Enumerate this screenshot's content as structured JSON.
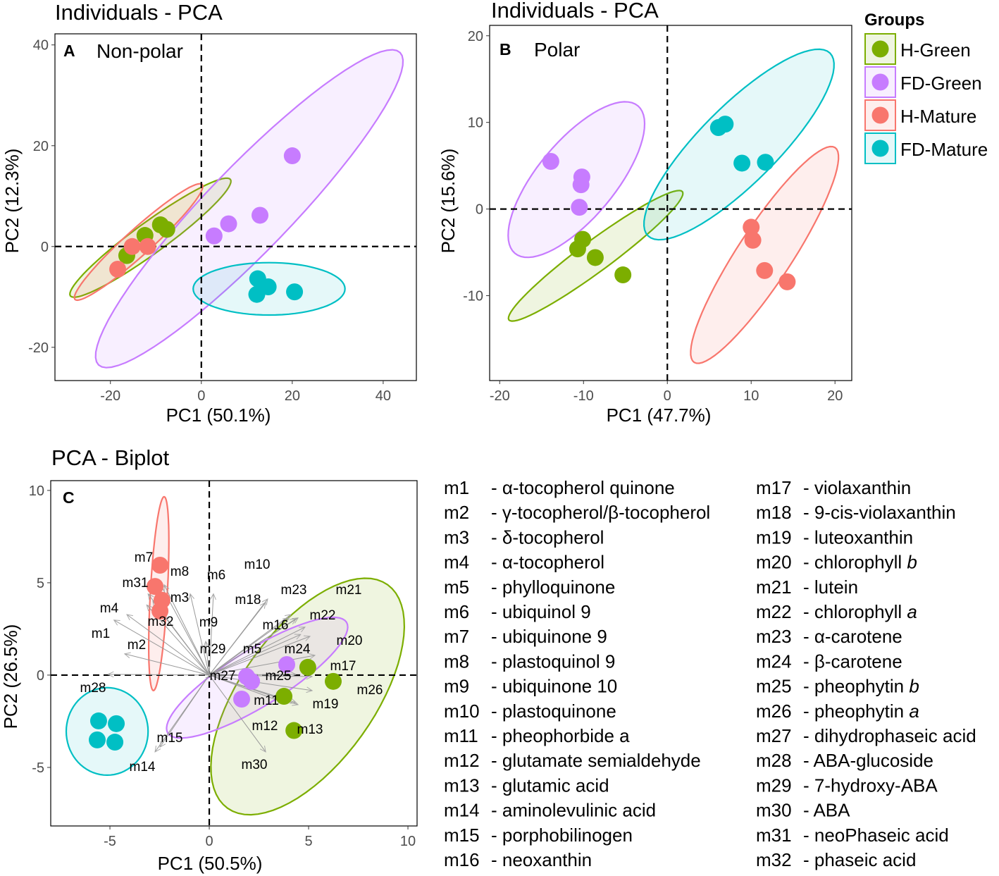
{
  "legend": {
    "title": "Groups",
    "items": [
      {
        "label": "H-Green",
        "color": "#7CAE00"
      },
      {
        "label": "FD-Green",
        "color": "#C77CFF"
      },
      {
        "label": "H-Mature",
        "color": "#F8766D"
      },
      {
        "label": "FD-Mature",
        "color": "#00BFC4"
      }
    ]
  },
  "chart_data": [
    {
      "type": "scatter",
      "title": "Individuals - PCA",
      "panel_label": "A",
      "subtitle": "Non-polar",
      "xlabel": "PC1 (50.1%)",
      "ylabel": "PC2 (12.3%)",
      "xlim": [
        -32.2,
        47.3
      ],
      "ylim": [
        -26.6,
        42.2
      ],
      "xticks": [
        -20,
        0,
        20,
        40
      ],
      "yticks": [
        -20,
        0,
        20,
        40
      ],
      "grid": false,
      "series": [
        {
          "name": "H-Green",
          "points": [
            [
              -9.0,
              4.3
            ],
            [
              -7.6,
              3.4
            ],
            [
              -12.4,
              2.2
            ],
            [
              -16.4,
              -1.8
            ]
          ]
        },
        {
          "name": "FD-Green",
          "points": [
            [
              2.8,
              2.1
            ],
            [
              6.0,
              4.5
            ],
            [
              12.9,
              6.2
            ],
            [
              20.0,
              18.0
            ]
          ]
        },
        {
          "name": "H-Mature",
          "points": [
            [
              -18.4,
              -4.5
            ],
            [
              -15.2,
              0.0
            ],
            [
              -11.8,
              0.0
            ]
          ]
        },
        {
          "name": "FD-Mature",
          "points": [
            [
              12.4,
              -6.4
            ],
            [
              14.7,
              -8.0
            ],
            [
              12.2,
              -9.5
            ],
            [
              20.5,
              -9.0
            ]
          ]
        }
      ],
      "ellipses": [
        {
          "group": "H-Green",
          "center": [
            -11.2,
            1.75
          ],
          "axis1": [
            17.6,
            11.55
          ],
          "axis2": [
            2.0,
            -2.5
          ]
        },
        {
          "group": "H-Mature",
          "center": [
            -13.8,
            0.9
          ],
          "axis1": [
            14.0,
            11.4
          ],
          "axis2": [
            1.9,
            -1.9
          ]
        },
        {
          "group": "FD-Green",
          "center": [
            10.55,
            7.5
          ],
          "axis1": [
            33.15,
            31.0
          ],
          "axis2": [
            6.7,
            -5.8
          ]
        },
        {
          "group": "FD-Mature",
          "center": [
            14.9,
            -8.4
          ],
          "axis1": [
            16.7,
            0.0
          ],
          "axis2": [
            0.0,
            5.2
          ]
        }
      ]
    },
    {
      "type": "scatter",
      "title": "Individuals - PCA",
      "panel_label": "B",
      "subtitle": "Polar",
      "xlabel": "PC1 (47.7%)",
      "ylabel": "PC2 (15.6%)",
      "xlim": [
        -21.2,
        22.0
      ],
      "ylim": [
        -19.8,
        21.2
      ],
      "xticks": [
        -20,
        -10,
        0,
        10,
        20
      ],
      "yticks": [
        -10,
        0,
        10,
        20
      ],
      "grid": false,
      "series": [
        {
          "name": "H-Green",
          "points": [
            [
              -10.1,
              -3.5
            ],
            [
              -10.7,
              -4.6
            ],
            [
              -8.6,
              -5.6
            ],
            [
              -5.3,
              -7.6
            ]
          ]
        },
        {
          "name": "FD-Green",
          "points": [
            [
              -13.9,
              5.5
            ],
            [
              -10.2,
              3.7
            ],
            [
              -10.3,
              2.8
            ],
            [
              -10.5,
              0.2
            ]
          ]
        },
        {
          "name": "H-Mature",
          "points": [
            [
              10.0,
              -2.1
            ],
            [
              10.2,
              -3.6
            ],
            [
              11.6,
              -7.1
            ],
            [
              14.3,
              -8.4
            ]
          ]
        },
        {
          "name": "FD-Mature",
          "points": [
            [
              6.1,
              9.4
            ],
            [
              6.9,
              9.8
            ],
            [
              8.9,
              5.3
            ],
            [
              11.7,
              5.4
            ]
          ]
        }
      ],
      "ellipses": [
        {
          "group": "FD-Green",
          "center": [
            -10.85,
            3.4
          ],
          "axis1": [
            7.35,
            8.5
          ],
          "axis2": [
            3.5,
            -2.9
          ]
        },
        {
          "group": "H-Green",
          "center": [
            -8.55,
            -5.4
          ],
          "axis1": [
            10.35,
            7.4
          ],
          "axis2": [
            1.1,
            -1.43
          ]
        },
        {
          "group": "FD-Mature",
          "center": [
            8.55,
            7.45
          ],
          "axis1": [
            10.85,
            10.55
          ],
          "axis2": [
            3.3,
            -3.1
          ]
        },
        {
          "group": "H-Mature",
          "center": [
            11.6,
            -5.3
          ],
          "axis1": [
            8.4,
            12.4
          ],
          "axis2": [
            2.7,
            -1.7
          ]
        }
      ]
    },
    {
      "type": "scatter",
      "title": "PCA - Biplot",
      "panel_label": "C",
      "subtitle": "",
      "xlabel": "PC1 (50.5%)",
      "ylabel": "PC2 (26.5%)",
      "xlim": [
        -7.98,
        10.46
      ],
      "ylim": [
        -8.17,
        10.53
      ],
      "xticks": [
        -5,
        0,
        5,
        10
      ],
      "yticks": [
        -5,
        0,
        5,
        10
      ],
      "grid": false,
      "series": [
        {
          "name": "H-Green",
          "points": [
            [
              4.96,
              0.42
            ],
            [
              6.24,
              -0.34
            ],
            [
              3.76,
              -1.15
            ],
            [
              4.26,
              -3.0
            ]
          ]
        },
        {
          "name": "FD-Green",
          "points": [
            [
              1.88,
              -0.08
            ],
            [
              2.13,
              -0.34
            ],
            [
              1.63,
              -1.3
            ],
            [
              3.9,
              0.57
            ]
          ]
        },
        {
          "name": "H-Mature",
          "points": [
            [
              -2.48,
              5.95
            ],
            [
              -2.73,
              4.8
            ],
            [
              -2.38,
              4.05
            ],
            [
              -2.48,
              3.47
            ]
          ]
        },
        {
          "name": "FD-Mature",
          "points": [
            [
              -5.57,
              -2.48
            ],
            [
              -4.68,
              -2.63
            ],
            [
              -5.64,
              -3.51
            ],
            [
              -4.75,
              -3.63
            ]
          ]
        }
      ],
      "ellipses": [
        {
          "group": "H-Green",
          "center": [
            4.95,
            -1.16
          ],
          "axis1": [
            4.03,
            6.05
          ],
          "axis2": [
            2.73,
            -2.1
          ]
        },
        {
          "group": "FD-Green",
          "center": [
            2.41,
            -0.14
          ],
          "axis1": [
            4.5,
            3.0
          ],
          "axis2": [
            0.74,
            -1.3
          ]
        },
        {
          "group": "H-Mature",
          "center": [
            -2.54,
            4.41
          ],
          "axis1": [
            0.27,
            5.25
          ],
          "axis2": [
            0.43,
            0.0
          ]
        },
        {
          "group": "FD-Mature",
          "center": [
            -5.14,
            -3.05
          ],
          "axis1": [
            2.06,
            0.0
          ],
          "axis2": [
            0.0,
            2.37
          ]
        }
      ],
      "arrows": [
        {
          "label": "m1",
          "x": -4.8,
          "y": 2.98
        },
        {
          "label": "m2",
          "x": -4.26,
          "y": 1.15
        },
        {
          "label": "m3",
          "x": -2.84,
          "y": 4.0
        },
        {
          "label": "m4",
          "x": -4.15,
          "y": 3.28
        },
        {
          "label": "m5",
          "x": 4.6,
          "y": 2.2
        },
        {
          "label": "m6",
          "x": 0.21,
          "y": 4.4
        },
        {
          "label": "m7",
          "x": -2.48,
          "y": 4.96
        },
        {
          "label": "m8",
          "x": -2.27,
          "y": 4.89
        },
        {
          "label": "m9",
          "x": -0.96,
          "y": 4.4
        },
        {
          "label": "m10",
          "x": 2.94,
          "y": 4.12
        },
        {
          "label": "m11",
          "x": 4.36,
          "y": -1.49
        },
        {
          "label": "m12",
          "x": 3.76,
          "y": -1.49
        },
        {
          "label": "m13",
          "x": 4.47,
          "y": -1.6
        },
        {
          "label": "m14",
          "x": -2.73,
          "y": -4.16
        },
        {
          "label": "m15",
          "x": -2.48,
          "y": -3.9
        },
        {
          "label": "m16",
          "x": 4.0,
          "y": 3.1
        },
        {
          "label": "m17",
          "x": 5.32,
          "y": 1.07
        },
        {
          "label": "m18",
          "x": 2.84,
          "y": 3.93
        },
        {
          "label": "m19",
          "x": 5.18,
          "y": -0.84
        },
        {
          "label": "m20",
          "x": 4.82,
          "y": 2.6
        },
        {
          "label": "m21",
          "x": 4.36,
          "y": 3.05
        },
        {
          "label": "m22",
          "x": 4.47,
          "y": 3.1
        },
        {
          "label": "m23",
          "x": 4.11,
          "y": 3.28
        },
        {
          "label": "m24",
          "x": 5.07,
          "y": 2.1
        },
        {
          "label": "m25",
          "x": 4.36,
          "y": 0.04
        },
        {
          "label": "m26",
          "x": 5.18,
          "y": -0.08
        },
        {
          "label": "m27",
          "x": 0.1,
          "y": 0.0
        },
        {
          "label": "m28",
          "x": -5.1,
          "y": 0.04
        },
        {
          "label": "m29",
          "x": -0.18,
          "y": 1.83
        },
        {
          "label": "m30",
          "x": 2.84,
          "y": -4.16
        },
        {
          "label": "m31",
          "x": -3.08,
          "y": 4.4
        },
        {
          "label": "m32",
          "x": -3.15,
          "y": 3.8
        }
      ]
    }
  ],
  "metabolite_key": [
    [
      {
        "id": "m1",
        "name": "- α-tocopherol quinone",
        "it": ""
      },
      {
        "id": "m2",
        "name": "- γ-tocopherol/β-tocopherol",
        "it": ""
      },
      {
        "id": "m3",
        "name": "- δ-tocopherol",
        "it": ""
      },
      {
        "id": "m4",
        "name": "- α-tocopherol",
        "it": ""
      },
      {
        "id": "m5",
        "name": "- phylloquinone",
        "it": ""
      },
      {
        "id": "m6",
        "name": "- ubiquinol 9",
        "it": ""
      },
      {
        "id": "m7",
        "name": "- ubiquinone 9",
        "it": ""
      },
      {
        "id": "m8",
        "name": "- plastoquinol 9",
        "it": ""
      },
      {
        "id": "m9",
        "name": "- ubiquinone 10",
        "it": ""
      },
      {
        "id": "m10",
        "name": "- plastoquinone",
        "it": ""
      },
      {
        "id": "m11",
        "name": "- pheophorbide a",
        "it": ""
      },
      {
        "id": "m12",
        "name": "- glutamate semialdehyde",
        "it": ""
      },
      {
        "id": "m13",
        "name": "- glutamic acid",
        "it": ""
      },
      {
        "id": "m14",
        "name": "- aminolevulinic acid",
        "it": ""
      },
      {
        "id": "m15",
        "name": "- porphobilinogen",
        "it": ""
      },
      {
        "id": "m16",
        "name": "- neoxanthin",
        "it": ""
      }
    ],
    [
      {
        "id": "m17",
        "name": "- violaxanthin",
        "it": ""
      },
      {
        "id": "m18",
        "name": "- 9-cis-violaxanthin",
        "it": ""
      },
      {
        "id": "m19",
        "name": "- luteoxanthin",
        "it": ""
      },
      {
        "id": "m20",
        "name": "- chlorophyll ",
        "it": "b"
      },
      {
        "id": "m21",
        "name": "- lutein",
        "it": ""
      },
      {
        "id": "m22",
        "name": "- chlorophyll ",
        "it": "a"
      },
      {
        "id": "m23",
        "name": "- α-carotene",
        "it": ""
      },
      {
        "id": "m24",
        "name": "- β-carotene",
        "it": ""
      },
      {
        "id": "m25",
        "name": "- pheophytin ",
        "it": "b"
      },
      {
        "id": "m26",
        "name": "- pheophytin ",
        "it": "a"
      },
      {
        "id": "m27",
        "name": "- dihydrophaseic acid",
        "it": ""
      },
      {
        "id": "m28",
        "name": "- ABA-glucoside",
        "it": ""
      },
      {
        "id": "m29",
        "name": "- 7-hydroxy-ABA",
        "it": ""
      },
      {
        "id": "m30",
        "name": "- ABA",
        "it": ""
      },
      {
        "id": "m31",
        "name": "- neoPhaseic acid",
        "it": ""
      },
      {
        "id": "m32",
        "name": "- phaseic acid",
        "it": ""
      }
    ]
  ]
}
